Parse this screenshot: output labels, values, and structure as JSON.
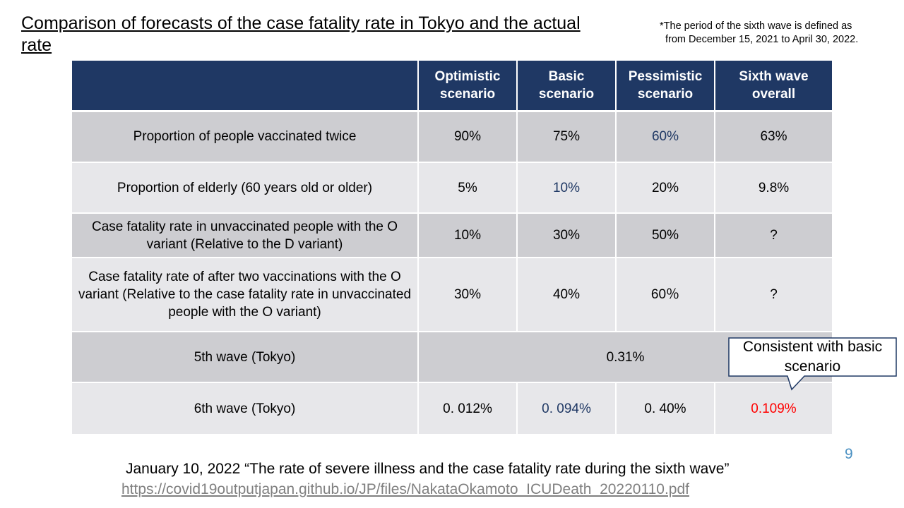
{
  "title": "Comparison of forecasts of the case fatality rate in Tokyo and the actual rate",
  "note": {
    "line1": "*The period of the sixth wave is defined as",
    "line2": "from December 15, 2021 to April 30, 2022."
  },
  "colors": {
    "header_bg": "#1f3864",
    "row_dark": "#cdcdd1",
    "row_light": "#e7e7ea",
    "highlight_blue": "#1f3864",
    "highlight_red": "#ff0000",
    "page_number": "#4a90c2"
  },
  "chart_data": {
    "type": "table",
    "columns": [
      "",
      "Optimistic scenario",
      "Basic scenario",
      "Pessimistic scenario",
      "Sixth wave overall"
    ],
    "rows": [
      {
        "label": "Proportion of people vaccinated twice",
        "values": [
          "90%",
          "75%",
          "60%",
          "63%"
        ]
      },
      {
        "label": "Proportion of elderly (60 years old or older)",
        "values": [
          "5%",
          "10%",
          "20%",
          "9.8%"
        ]
      },
      {
        "label": "Case fatality rate in unvaccinated people with the O variant (Relative to the D variant)",
        "values": [
          "10%",
          "30%",
          "50%",
          "?"
        ]
      },
      {
        "label": "Case fatality rate of after two vaccinations with the O variant (Relative to the case fatality rate in unvaccinated people with the O variant)",
        "values": [
          "30%",
          "40%",
          "60％",
          "?"
        ]
      },
      {
        "label": "5th wave (Tokyo)",
        "values": [
          "0.31%"
        ]
      },
      {
        "label": "6th wave (Tokyo)",
        "values": [
          "0. 012%",
          "0. 094%",
          "0. 40%",
          "0.109%"
        ]
      }
    ]
  },
  "callout": "Consistent with basic scenario",
  "page_number": "9",
  "source": "January 10, 2022 “The rate of severe illness and the case fatality rate during the sixth wave”",
  "link": "https://covid19outputjapan.github.io/JP/files/NakataOkamoto_ICUDeath_20220110.pdf"
}
